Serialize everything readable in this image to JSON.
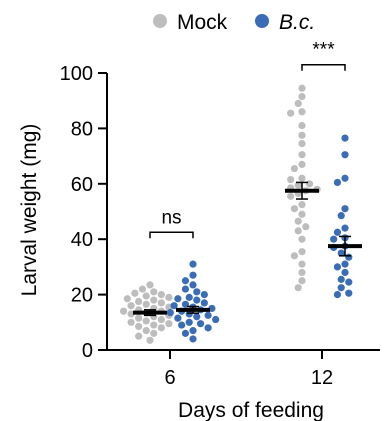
{
  "chart_data": {
    "type": "scatter",
    "title": "",
    "xlabel": "Days of feeding",
    "ylabel": "Larval weight (mg)",
    "ylim": [
      0,
      100
    ],
    "yticks": [
      0,
      20,
      40,
      60,
      80,
      100
    ],
    "categories": [
      "6",
      "12"
    ],
    "legend": {
      "placement": "top-center"
    },
    "colors": {
      "Mock": "#bdbdbd",
      "B.c.": "#3a6db5",
      "mean_bar": "#000000",
      "bracket": "#000000"
    },
    "series": [
      {
        "name": "Mock",
        "legend_style": "plain",
        "color": "#bdbdbd",
        "groups": [
          {
            "category": "6",
            "mean": 13.5,
            "sem": 1.0,
            "values": [
              23.5,
              22,
              21,
              20.5,
              20,
              19.5,
              19,
              18.5,
              18,
              17.5,
              17,
              16.5,
              16,
              15.5,
              15,
              14.5,
              14,
              14,
              13.5,
              13,
              12.5,
              12,
              11.5,
              11,
              10.5,
              10,
              9.5,
              9,
              8.5,
              8,
              7,
              6,
              5,
              3.5
            ]
          },
          {
            "category": "12",
            "mean": 57.5,
            "sem": 3.0,
            "values": [
              94.5,
              91.5,
              89,
              86,
              85.5,
              81,
              77.5,
              74.5,
              70.5,
              67,
              65.5,
              62,
              61.5,
              60,
              59.5,
              58.5,
              58,
              57.5,
              56.5,
              55.5,
              52.5,
              51,
              49,
              46.5,
              44.5,
              43,
              40,
              35.5,
              34,
              31,
              28,
              25,
              22.5
            ]
          }
        ]
      },
      {
        "name": "B.c.",
        "legend_style": "italic",
        "color": "#3a6db5",
        "groups": [
          {
            "category": "6",
            "mean": 14.5,
            "sem": 1.2,
            "values": [
              31,
              27,
              25,
              23.5,
              22,
              21,
              20,
              19,
              18.5,
              18,
              17,
              16.5,
              16,
              15.5,
              15,
              14.5,
              14,
              13.5,
              13,
              12.5,
              12,
              11.5,
              11,
              10,
              9.5,
              9,
              8,
              7,
              6,
              4
            ]
          },
          {
            "category": "12",
            "mean": 37.5,
            "sem": 3.5,
            "values": [
              76.5,
              70.5,
              62,
              60.5,
              51,
              48.5,
              44,
              42.5,
              40.5,
              40,
              37.5,
              37,
              35,
              33.5,
              31,
              30,
              28,
              25.5,
              24.5,
              22.5,
              20.5,
              20
            ]
          }
        ]
      }
    ],
    "annotations": [
      {
        "category": "6",
        "text": "ns",
        "bracket_y": 42.5
      },
      {
        "category": "12",
        "text": "***",
        "bracket_y": 103
      }
    ]
  }
}
